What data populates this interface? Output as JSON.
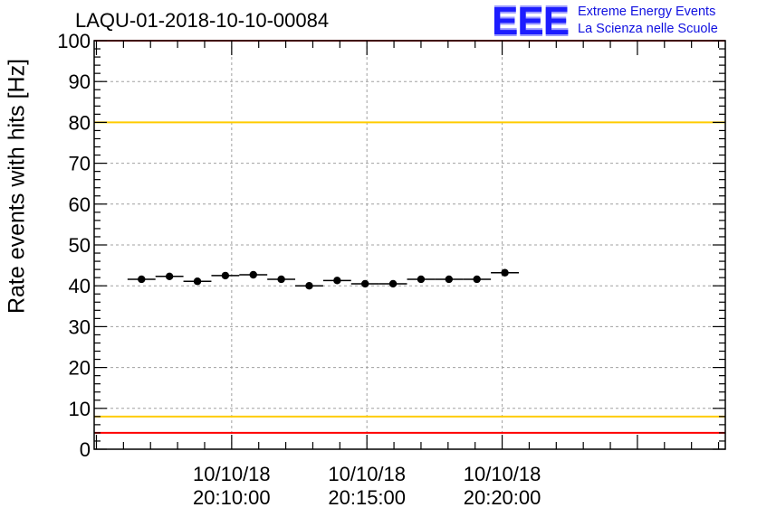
{
  "chart_data": {
    "type": "scatter",
    "title": "LAQU-01-2018-10-10-00084",
    "ylabel": "Rate events with hits [Hz]",
    "xlabel": "",
    "ylim": [
      0,
      100
    ],
    "xlim_seconds": [
      -305,
      1095
    ],
    "y_ticks": [
      "0",
      "10",
      "20",
      "30",
      "40",
      "50",
      "60",
      "70",
      "80",
      "90",
      "100"
    ],
    "y_tick_values": [
      0,
      10,
      20,
      30,
      40,
      50,
      60,
      70,
      80,
      90,
      100
    ],
    "x_ticks": [
      {
        "t": 0,
        "date": "10/10/18",
        "time": "20:10:00"
      },
      {
        "t": 300,
        "date": "10/10/18",
        "time": "20:15:00"
      },
      {
        "t": 600,
        "date": "10/10/18",
        "time": "20:20:00"
      }
    ],
    "grid": true,
    "series": [
      {
        "name": "rate",
        "color": "#000000",
        "bin_width_seconds": 62,
        "x": [
          -200,
          -138,
          -76,
          -14,
          48,
          110,
          172,
          234,
          296,
          358,
          420,
          482,
          544,
          606
        ],
        "values": [
          41.6,
          42.3,
          41.1,
          42.5,
          42.7,
          41.6,
          40.0,
          41.3,
          40.5,
          40.5,
          41.6,
          41.6,
          41.6,
          43.2
        ],
        "errors": [
          0.5,
          0.5,
          0.5,
          0.5,
          0.5,
          0.5,
          0.5,
          0.5,
          0.5,
          0.5,
          0.5,
          0.5,
          0.5,
          0.5
        ]
      }
    ],
    "reference_lines": [
      {
        "name": "upper-red",
        "value": 100,
        "color": "#ff0000"
      },
      {
        "name": "upper-yellow",
        "value": 80,
        "color": "#ffcc00"
      },
      {
        "name": "lower-yellow",
        "value": 8,
        "color": "#ffcc00"
      },
      {
        "name": "lower-red",
        "value": 4,
        "color": "#ff0000"
      }
    ]
  },
  "logo": {
    "mark": "EEE",
    "line1": "Extreme Energy Events",
    "line2": "La Scienza nelle Scuole",
    "color": "#1c1cff"
  }
}
